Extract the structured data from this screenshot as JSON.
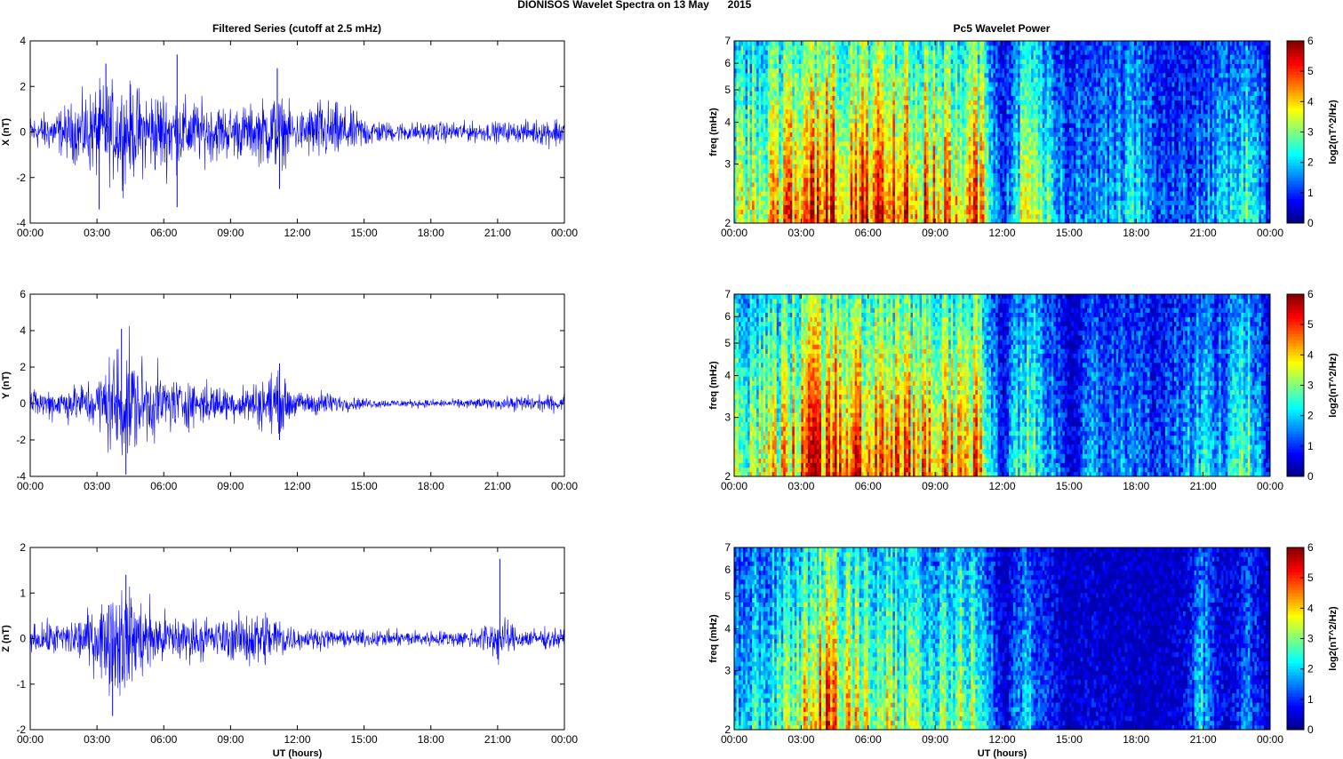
{
  "page": {
    "title_prefix": "DIONISOS Wavelet Spectra on 13 May",
    "title_year": "2015",
    "left_title": "Filtered Series (cutoff at 2.5 mHz)",
    "right_title": "Pc5 Wavelet Power"
  },
  "colors": {
    "series_line": "#0000ff",
    "colormap": "jet",
    "background_low": "#00008f",
    "high": "#800000"
  },
  "chart_data": [
    {
      "type": "line",
      "title": "Filtered Series (cutoff at 2.5 mHz)",
      "xlabel": "",
      "ylabel": "X (nT)",
      "xticks": [
        "00:00",
        "03:00",
        "06:00",
        "09:00",
        "12:00",
        "15:00",
        "18:00",
        "21:00",
        "00:00"
      ],
      "xlim_hours": [
        0,
        24
      ],
      "ylim": [
        -4,
        4
      ],
      "yticks": [
        -4,
        -2,
        0,
        2,
        4
      ],
      "grid": false,
      "series": [
        {
          "values_envelope_hours": [
            0,
            1,
            2,
            3,
            4,
            5,
            6,
            7,
            8,
            9,
            10,
            11,
            12,
            13,
            14,
            15,
            16,
            17,
            18,
            19,
            20,
            21,
            22,
            23,
            24
          ],
          "amplitude_envelope": [
            0.5,
            0.6,
            0.9,
            1.4,
            1.5,
            1.3,
            1.3,
            1.0,
            0.9,
            0.8,
            0.8,
            1.2,
            0.6,
            1.0,
            0.8,
            0.5,
            0.3,
            0.3,
            0.3,
            0.3,
            0.3,
            0.3,
            0.3,
            0.4,
            0.5
          ],
          "peaks": [
            {
              "x": 3.4,
              "y": 3.0
            },
            {
              "x": 3.1,
              "y": -3.4
            },
            {
              "x": 6.6,
              "y": 3.4
            },
            {
              "x": 6.6,
              "y": -3.3
            },
            {
              "x": 11.1,
              "y": 2.8
            },
            {
              "x": 11.2,
              "y": -2.5
            }
          ]
        }
      ]
    },
    {
      "type": "heatmap",
      "title": "Pc5 Wavelet Power",
      "xlabel": "",
      "ylabel": "freq (mHz)",
      "xticks": [
        "00:00",
        "03:00",
        "06:00",
        "09:00",
        "12:00",
        "15:00",
        "18:00",
        "21:00",
        "00:00"
      ],
      "xlim_hours": [
        0,
        24
      ],
      "ylim_mhz": [
        2,
        7
      ],
      "yticks": [
        2,
        3,
        4,
        5,
        6,
        7
      ],
      "y_scale": "log",
      "colorbar": {
        "label": "log2(nT^2/Hz)",
        "range": [
          0,
          6
        ],
        "ticks": [
          0,
          1,
          2,
          3,
          4,
          5,
          6
        ]
      },
      "activity_profile_hours": [
        0,
        1,
        2,
        3,
        4,
        5,
        6,
        7,
        8,
        9,
        10,
        11,
        12,
        13,
        14,
        15,
        16,
        17,
        18,
        19,
        20,
        21,
        22,
        23,
        24
      ],
      "activity_profile_log2": [
        3.8,
        4.3,
        4.8,
        5.6,
        6.0,
        5.8,
        6.0,
        5.8,
        5.6,
        5.2,
        5.0,
        5.4,
        1.0,
        4.2,
        3.2,
        1.5,
        2.4,
        2.2,
        2.6,
        1.5,
        1.6,
        2.0,
        2.2,
        3.6,
        1.2
      ]
    },
    {
      "type": "line",
      "title": "",
      "xlabel": "",
      "ylabel": "Y (nT)",
      "xticks": [
        "00:00",
        "03:00",
        "06:00",
        "09:00",
        "12:00",
        "15:00",
        "18:00",
        "21:00",
        "00:00"
      ],
      "xlim_hours": [
        0,
        24
      ],
      "ylim": [
        -4,
        6
      ],
      "yticks": [
        -4,
        -2,
        0,
        2,
        4,
        6
      ],
      "grid": false,
      "series": [
        {
          "values_envelope_hours": [
            0,
            1,
            2,
            3,
            4,
            5,
            6,
            7,
            8,
            9,
            10,
            11,
            12,
            13,
            14,
            15,
            16,
            17,
            18,
            19,
            20,
            21,
            22,
            23,
            24
          ],
          "amplitude_envelope": [
            0.5,
            0.6,
            0.7,
            1.0,
            2.5,
            1.6,
            1.1,
            0.9,
            0.8,
            0.6,
            0.8,
            1.2,
            0.4,
            0.5,
            0.3,
            0.2,
            0.15,
            0.15,
            0.15,
            0.15,
            0.2,
            0.2,
            0.3,
            0.3,
            0.3
          ],
          "peaks": [
            {
              "x": 4.1,
              "y": 4.1
            },
            {
              "x": 4.3,
              "y": -3.9
            },
            {
              "x": 11.2,
              "y": 2.2
            },
            {
              "x": 11.2,
              "y": -2.0
            }
          ]
        }
      ]
    },
    {
      "type": "heatmap",
      "title": "",
      "xlabel": "",
      "ylabel": "freq (mHz)",
      "xticks": [
        "00:00",
        "03:00",
        "06:00",
        "09:00",
        "12:00",
        "15:00",
        "18:00",
        "21:00",
        "00:00"
      ],
      "xlim_hours": [
        0,
        24
      ],
      "ylim_mhz": [
        2,
        7
      ],
      "yticks": [
        2,
        3,
        4,
        5,
        6,
        7
      ],
      "y_scale": "log",
      "colorbar": {
        "label": "log2(nT^2/Hz)",
        "range": [
          0,
          6
        ],
        "ticks": [
          0,
          1,
          2,
          3,
          4,
          5,
          6
        ]
      },
      "activity_profile_hours": [
        0,
        1,
        2,
        3,
        4,
        5,
        6,
        7,
        8,
        9,
        10,
        11,
        12,
        13,
        14,
        15,
        16,
        17,
        18,
        19,
        20,
        21,
        22,
        23,
        24
      ],
      "activity_profile_log2": [
        3.5,
        4.0,
        4.4,
        5.4,
        6.0,
        5.8,
        5.6,
        5.6,
        5.2,
        5.0,
        5.0,
        5.4,
        0.8,
        3.8,
        2.8,
        0.6,
        2.0,
        1.8,
        2.0,
        1.2,
        2.0,
        2.6,
        2.2,
        3.4,
        1.0
      ]
    },
    {
      "type": "line",
      "title": "",
      "xlabel": "UT (hours)",
      "ylabel": "Z (nT)",
      "xticks": [
        "00:00",
        "03:00",
        "06:00",
        "09:00",
        "12:00",
        "15:00",
        "18:00",
        "21:00",
        "00:00"
      ],
      "xlim_hours": [
        0,
        24
      ],
      "ylim": [
        -2,
        2
      ],
      "yticks": [
        -2,
        -1,
        0,
        1,
        2
      ],
      "grid": false,
      "series": [
        {
          "values_envelope_hours": [
            0,
            1,
            2,
            3,
            4,
            5,
            6,
            7,
            8,
            9,
            10,
            11,
            12,
            13,
            14,
            15,
            16,
            17,
            18,
            19,
            20,
            21,
            22,
            23,
            24
          ],
          "amplitude_envelope": [
            0.2,
            0.25,
            0.3,
            0.5,
            0.9,
            0.6,
            0.4,
            0.35,
            0.3,
            0.3,
            0.45,
            0.4,
            0.15,
            0.15,
            0.12,
            0.12,
            0.12,
            0.12,
            0.12,
            0.12,
            0.15,
            0.35,
            0.15,
            0.15,
            0.15
          ],
          "peaks": [
            {
              "x": 4.3,
              "y": 1.4
            },
            {
              "x": 3.7,
              "y": -1.7
            },
            {
              "x": 21.1,
              "y": 1.75
            },
            {
              "x": 21.0,
              "y": -0.45
            }
          ]
        }
      ]
    },
    {
      "type": "heatmap",
      "title": "",
      "xlabel": "UT (hours)",
      "ylabel": "freq (mHz)",
      "xticks": [
        "00:00",
        "03:00",
        "06:00",
        "09:00",
        "12:00",
        "15:00",
        "18:00",
        "21:00",
        "00:00"
      ],
      "xlim_hours": [
        0,
        24
      ],
      "ylim_mhz": [
        2,
        7
      ],
      "yticks": [
        2,
        3,
        4,
        5,
        6,
        7
      ],
      "y_scale": "log",
      "colorbar": {
        "label": "log2(nT^2/Hz)",
        "range": [
          0,
          6
        ],
        "ticks": [
          0,
          1,
          2,
          3,
          4,
          5,
          6
        ]
      },
      "activity_profile_hours": [
        0,
        1,
        2,
        3,
        4,
        5,
        6,
        7,
        8,
        9,
        10,
        11,
        12,
        13,
        14,
        15,
        16,
        17,
        18,
        19,
        20,
        21,
        22,
        23,
        24
      ],
      "activity_profile_log2": [
        2.2,
        2.8,
        3.2,
        4.2,
        5.8,
        4.6,
        4.2,
        4.0,
        3.6,
        3.6,
        3.8,
        4.2,
        0.4,
        2.4,
        1.2,
        0.3,
        0.6,
        0.4,
        0.4,
        0.3,
        0.6,
        2.4,
        0.4,
        1.8,
        0.3
      ]
    }
  ]
}
